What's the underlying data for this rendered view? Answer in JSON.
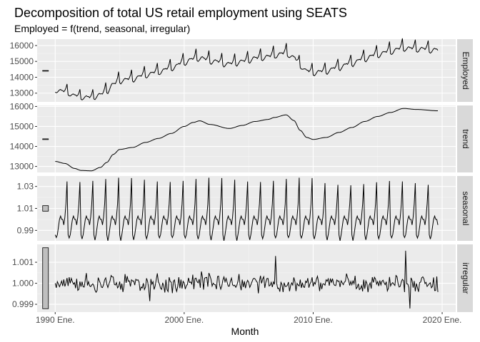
{
  "chart_data": {
    "type": "line",
    "title": "Decomposition of total US retail employment using SEATS",
    "subtitle": "Employed = f(trend, seasonal, irregular)",
    "xlabel": "Month",
    "x_range": [
      "1990-01",
      "2019-09"
    ],
    "x_ticks": [
      {
        "value": 1990,
        "label": "1990 Ene."
      },
      {
        "value": 2000,
        "label": "2000 Ene."
      },
      {
        "value": 2010,
        "label": "2010 Ene."
      },
      {
        "value": 2020,
        "label": "2020 Ene."
      }
    ],
    "grid": true,
    "legend": "none",
    "panels": [
      {
        "name": "Employed",
        "ylim": [
          12450,
          16400
        ],
        "y_ticks": [
          {
            "value": 13000,
            "label": "13000"
          },
          {
            "value": 14000,
            "label": "14000"
          },
          {
            "value": 15000,
            "label": "15000"
          },
          {
            "value": 16000,
            "label": "16000"
          }
        ],
        "scale_bar_height": 8,
        "components": [
          "trend",
          "seasonal",
          "irregular"
        ],
        "form": "multiplicative"
      },
      {
        "name": "trend",
        "ylim": [
          12700,
          16050
        ],
        "y_ticks": [
          {
            "value": 13000,
            "label": "13000"
          },
          {
            "value": 14000,
            "label": "14000"
          },
          {
            "value": 15000,
            "label": "15000"
          },
          {
            "value": 16000,
            "label": "16000"
          }
        ],
        "scale_bar_height": 8,
        "anchors": [
          [
            1990.0,
            13250
          ],
          [
            1990.75,
            13150
          ],
          [
            1991.5,
            12900
          ],
          [
            1992.0,
            12800
          ],
          [
            1992.8,
            12780
          ],
          [
            1993.5,
            12950
          ],
          [
            1994.0,
            13200
          ],
          [
            1994.5,
            13600
          ],
          [
            1995.0,
            13850
          ],
          [
            1996.0,
            13950
          ],
          [
            1997.0,
            14200
          ],
          [
            1998.0,
            14400
          ],
          [
            1999.0,
            14650
          ],
          [
            2000.0,
            15000
          ],
          [
            2000.7,
            15200
          ],
          [
            2001.2,
            15280
          ],
          [
            2002.0,
            15100
          ],
          [
            2003.5,
            14900
          ],
          [
            2004.5,
            15050
          ],
          [
            2005.5,
            15250
          ],
          [
            2006.5,
            15350
          ],
          [
            2007.0,
            15450
          ],
          [
            2007.9,
            15580
          ],
          [
            2008.5,
            15300
          ],
          [
            2009.0,
            14800
          ],
          [
            2009.5,
            14450
          ],
          [
            2010.0,
            14350
          ],
          [
            2011.0,
            14450
          ],
          [
            2012.0,
            14700
          ],
          [
            2013.0,
            14950
          ],
          [
            2014.0,
            15250
          ],
          [
            2015.0,
            15500
          ],
          [
            2016.0,
            15700
          ],
          [
            2017.0,
            15900
          ],
          [
            2018.0,
            15850
          ],
          [
            2019.75,
            15780
          ]
        ]
      },
      {
        "name": "seasonal",
        "ylim": [
          0.9805,
          1.0395
        ],
        "y_ticks": [
          {
            "value": 0.99,
            "label": "0.99"
          },
          {
            "value": 1.01,
            "label": "1.01"
          },
          {
            "value": 1.03,
            "label": "1.03"
          }
        ],
        "scale_bar_height": 0.005,
        "monthly_factors": [
          0.986,
          0.982,
          0.986,
          0.993,
          1.0,
          1.003,
          1.0,
          1.0,
          0.995,
          1.002,
          1.014,
          1.036
        ]
      },
      {
        "name": "irregular",
        "ylim": [
          0.99863,
          1.00185
        ],
        "y_ticks": [
          {
            "value": 0.999,
            "label": "0.999"
          },
          {
            "value": 1.0,
            "label": "1.000"
          },
          {
            "value": 1.001,
            "label": "1.001"
          }
        ],
        "scale_bar_height": 0.0029,
        "center": 1.0,
        "typical_amplitude": 0.0004
      }
    ]
  },
  "colors": {
    "panel_background": "#ebebeb",
    "grid_major": "#ffffff",
    "strip_background": "#d9d9d9",
    "line": "#000000",
    "scale_bar_fill": "#bfbfbf"
  }
}
